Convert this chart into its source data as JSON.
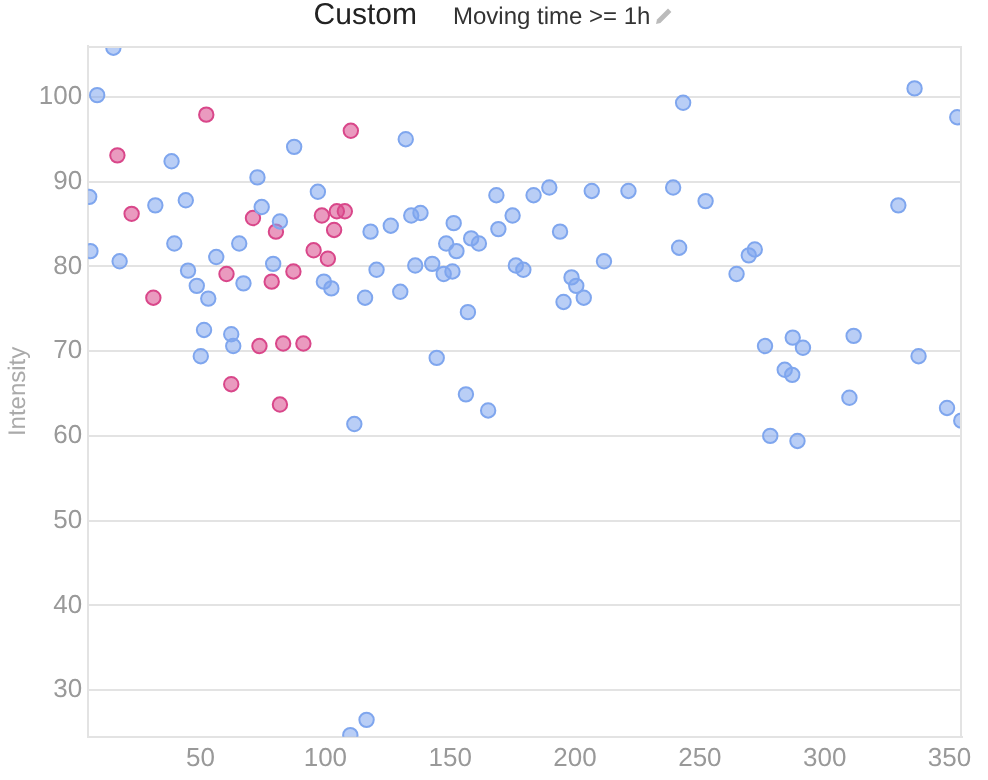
{
  "chart_data": {
    "type": "scatter",
    "title": "Custom",
    "subtitle": "Moving time >= 1h",
    "ylabel": "Intensity",
    "xlim": [
      5,
      355
    ],
    "ylim": [
      24.5,
      106
    ],
    "xticks": [
      50,
      100,
      150,
      200,
      250,
      300,
      350
    ],
    "yticks": [
      30,
      40,
      50,
      60,
      70,
      80,
      90,
      100
    ],
    "grid": "y",
    "marker": "circle",
    "series": [
      {
        "color": "#7fa6ee",
        "x": [
          15.1,
          8.6,
          5.4,
          5.9,
          17.6,
          38.4,
          31.9,
          44.1,
          39.5,
          45,
          48.5,
          53.1,
          56.3,
          51.4,
          50.1,
          62.3,
          63.1,
          65.5,
          67.2,
          72.8,
          74.5,
          81.8,
          79.1,
          87.5,
          97,
          99.4,
          102.4,
          132.2,
          115.9,
          118.1,
          120.5,
          126.2,
          130,
          134.4,
          138.1,
          136,
          142.8,
          147.4,
          150.9,
          148.4,
          151.4,
          152.5,
          158.4,
          161.5,
          157.1,
          144.6,
          156.3,
          165.2,
          111.6,
          168.5,
          169.3,
          175,
          176.3,
          179.3,
          183.4,
          189.7,
          194,
          198.6,
          200.5,
          203.5,
          195.4,
          211.6,
          206.7,
          221.4,
          243.3,
          239.3,
          252.3,
          241.7,
          269.6,
          272,
          264.7,
          276.1,
          287.2,
          291.3,
          311.6,
          284,
          287,
          309.9,
          336,
          353.1,
          329.5,
          337.6,
          349,
          354.7,
          278.2,
          289.1,
          110,
          116.5
        ],
        "values": [
          105.8,
          100.2,
          88.2,
          81.8,
          80.6,
          92.4,
          87.2,
          87.8,
          82.7,
          79.5,
          77.7,
          76.2,
          81.1,
          72.5,
          69.4,
          72,
          70.6,
          82.7,
          78,
          90.5,
          87,
          85.3,
          80.3,
          94.1,
          88.8,
          78.2,
          77.4,
          95,
          76.3,
          84.1,
          79.6,
          84.8,
          77,
          86,
          86.3,
          80.1,
          80.3,
          79.1,
          79.4,
          82.7,
          85.1,
          81.8,
          83.3,
          82.7,
          74.6,
          69.2,
          64.9,
          63,
          61.4,
          88.4,
          84.4,
          86,
          80.1,
          79.6,
          88.4,
          89.3,
          84.1,
          78.7,
          77.7,
          76.3,
          75.8,
          80.6,
          88.9,
          88.9,
          99.3,
          89.3,
          87.7,
          82.2,
          81.3,
          82,
          79.1,
          70.6,
          71.6,
          70.4,
          71.8,
          67.8,
          67.2,
          64.5,
          101,
          97.6,
          87.2,
          69.4,
          63.3,
          61.8,
          60,
          59.4,
          24.7,
          26.5
        ]
      },
      {
        "color": "#d9478a",
        "x": [
          16.7,
          52.3,
          22.4,
          31.1,
          71,
          80.2,
          60.4,
          78.5,
          87.2,
          73.6,
          83.1,
          91.2,
          62.3,
          81.8,
          95.3,
          98.6,
          101,
          103.5,
          110.2,
          104.6,
          107.8
        ],
        "values": [
          93.1,
          97.9,
          86.2,
          76.3,
          85.7,
          84.1,
          79.1,
          78.2,
          79.4,
          70.6,
          70.9,
          70.9,
          66.1,
          63.7,
          81.9,
          86,
          80.9,
          84.3,
          96,
          86.5,
          86.5
        ]
      }
    ]
  }
}
